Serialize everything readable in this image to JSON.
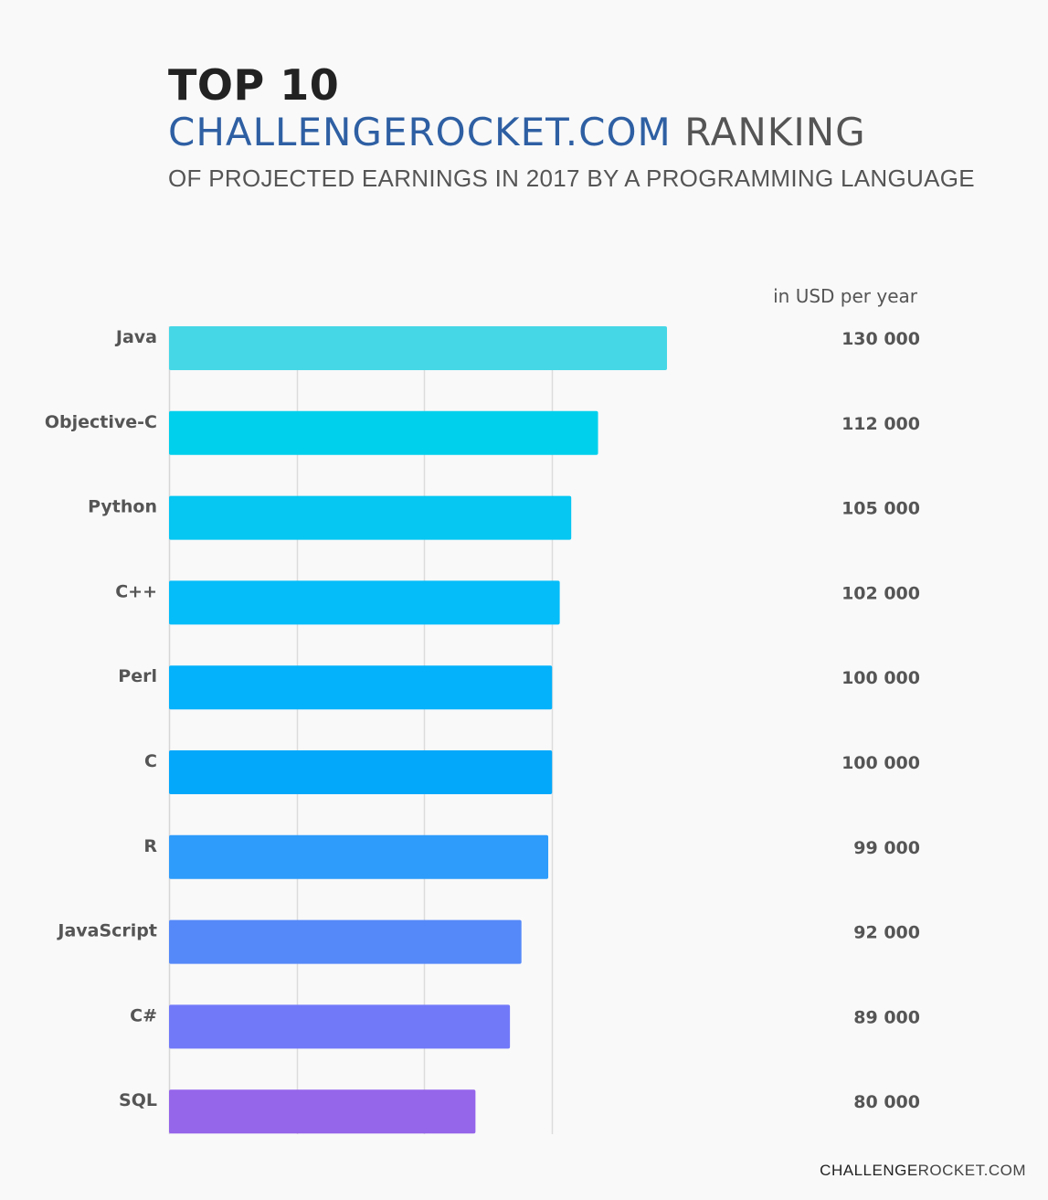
{
  "header": {
    "title_line1": "TOP 10",
    "title_brand": "CHALLENGEROCKET.COM",
    "title_rest": "RANKING",
    "subtitle": "OF PROJECTED EARNINGS IN 2017 BY A PROGRAMMING LANGUAGE"
  },
  "footer": {
    "brand_part1": "CHALLENGE",
    "brand_part2": "ROCKET.COM"
  },
  "chart_data": {
    "type": "bar",
    "orientation": "horizontal",
    "unit_label": "in USD per year",
    "categories": [
      "Java",
      "Objective-C",
      "Python",
      "C++",
      "Perl",
      "C",
      "R",
      "JavaScript",
      "C#",
      "SQL"
    ],
    "values": [
      130000,
      112000,
      105000,
      102000,
      100000,
      100000,
      99000,
      92000,
      89000,
      80000
    ],
    "value_labels": [
      "130 000",
      "112 000",
      "105 000",
      "102 000",
      "100 000",
      "100 000",
      "99 000",
      "92 000",
      "89 000",
      "80 000"
    ],
    "bar_colors": [
      "#46d7e6",
      "#00d0ec",
      "#06c6f2",
      "#04bdf9",
      "#03b2fb",
      "#03a8fb",
      "#2e9cfb",
      "#5589f9",
      "#7279f8",
      "#9565ea"
    ],
    "xlim": [
      0,
      200000
    ],
    "gridlines": [
      0,
      33333,
      66667,
      100000
    ],
    "grid": true
  }
}
